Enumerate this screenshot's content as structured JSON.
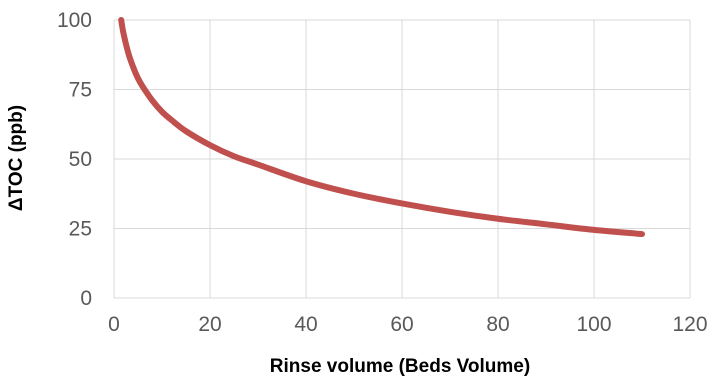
{
  "chart_data": {
    "type": "line",
    "title": "",
    "xlabel": "Rinse volume (Beds Volume)",
    "ylabel": "ΔTOC (ppb)",
    "xlim": [
      0,
      120
    ],
    "ylim": [
      0,
      100
    ],
    "xticks": [
      0,
      20,
      40,
      60,
      80,
      100,
      120
    ],
    "yticks": [
      0,
      25,
      50,
      75,
      100
    ],
    "grid": true,
    "legend": "none",
    "series": [
      {
        "color": "#c0504d",
        "x": [
          1.5,
          2,
          3,
          4,
          5,
          6,
          8,
          10,
          12,
          15,
          20,
          25,
          30,
          40,
          50,
          60,
          70,
          80,
          90,
          100,
          110
        ],
        "y": [
          100,
          95,
          88,
          83,
          79,
          76,
          71,
          67,
          64,
          60,
          55,
          51,
          48,
          42,
          37.5,
          34,
          31,
          28.5,
          26.5,
          24.5,
          23
        ]
      }
    ]
  }
}
